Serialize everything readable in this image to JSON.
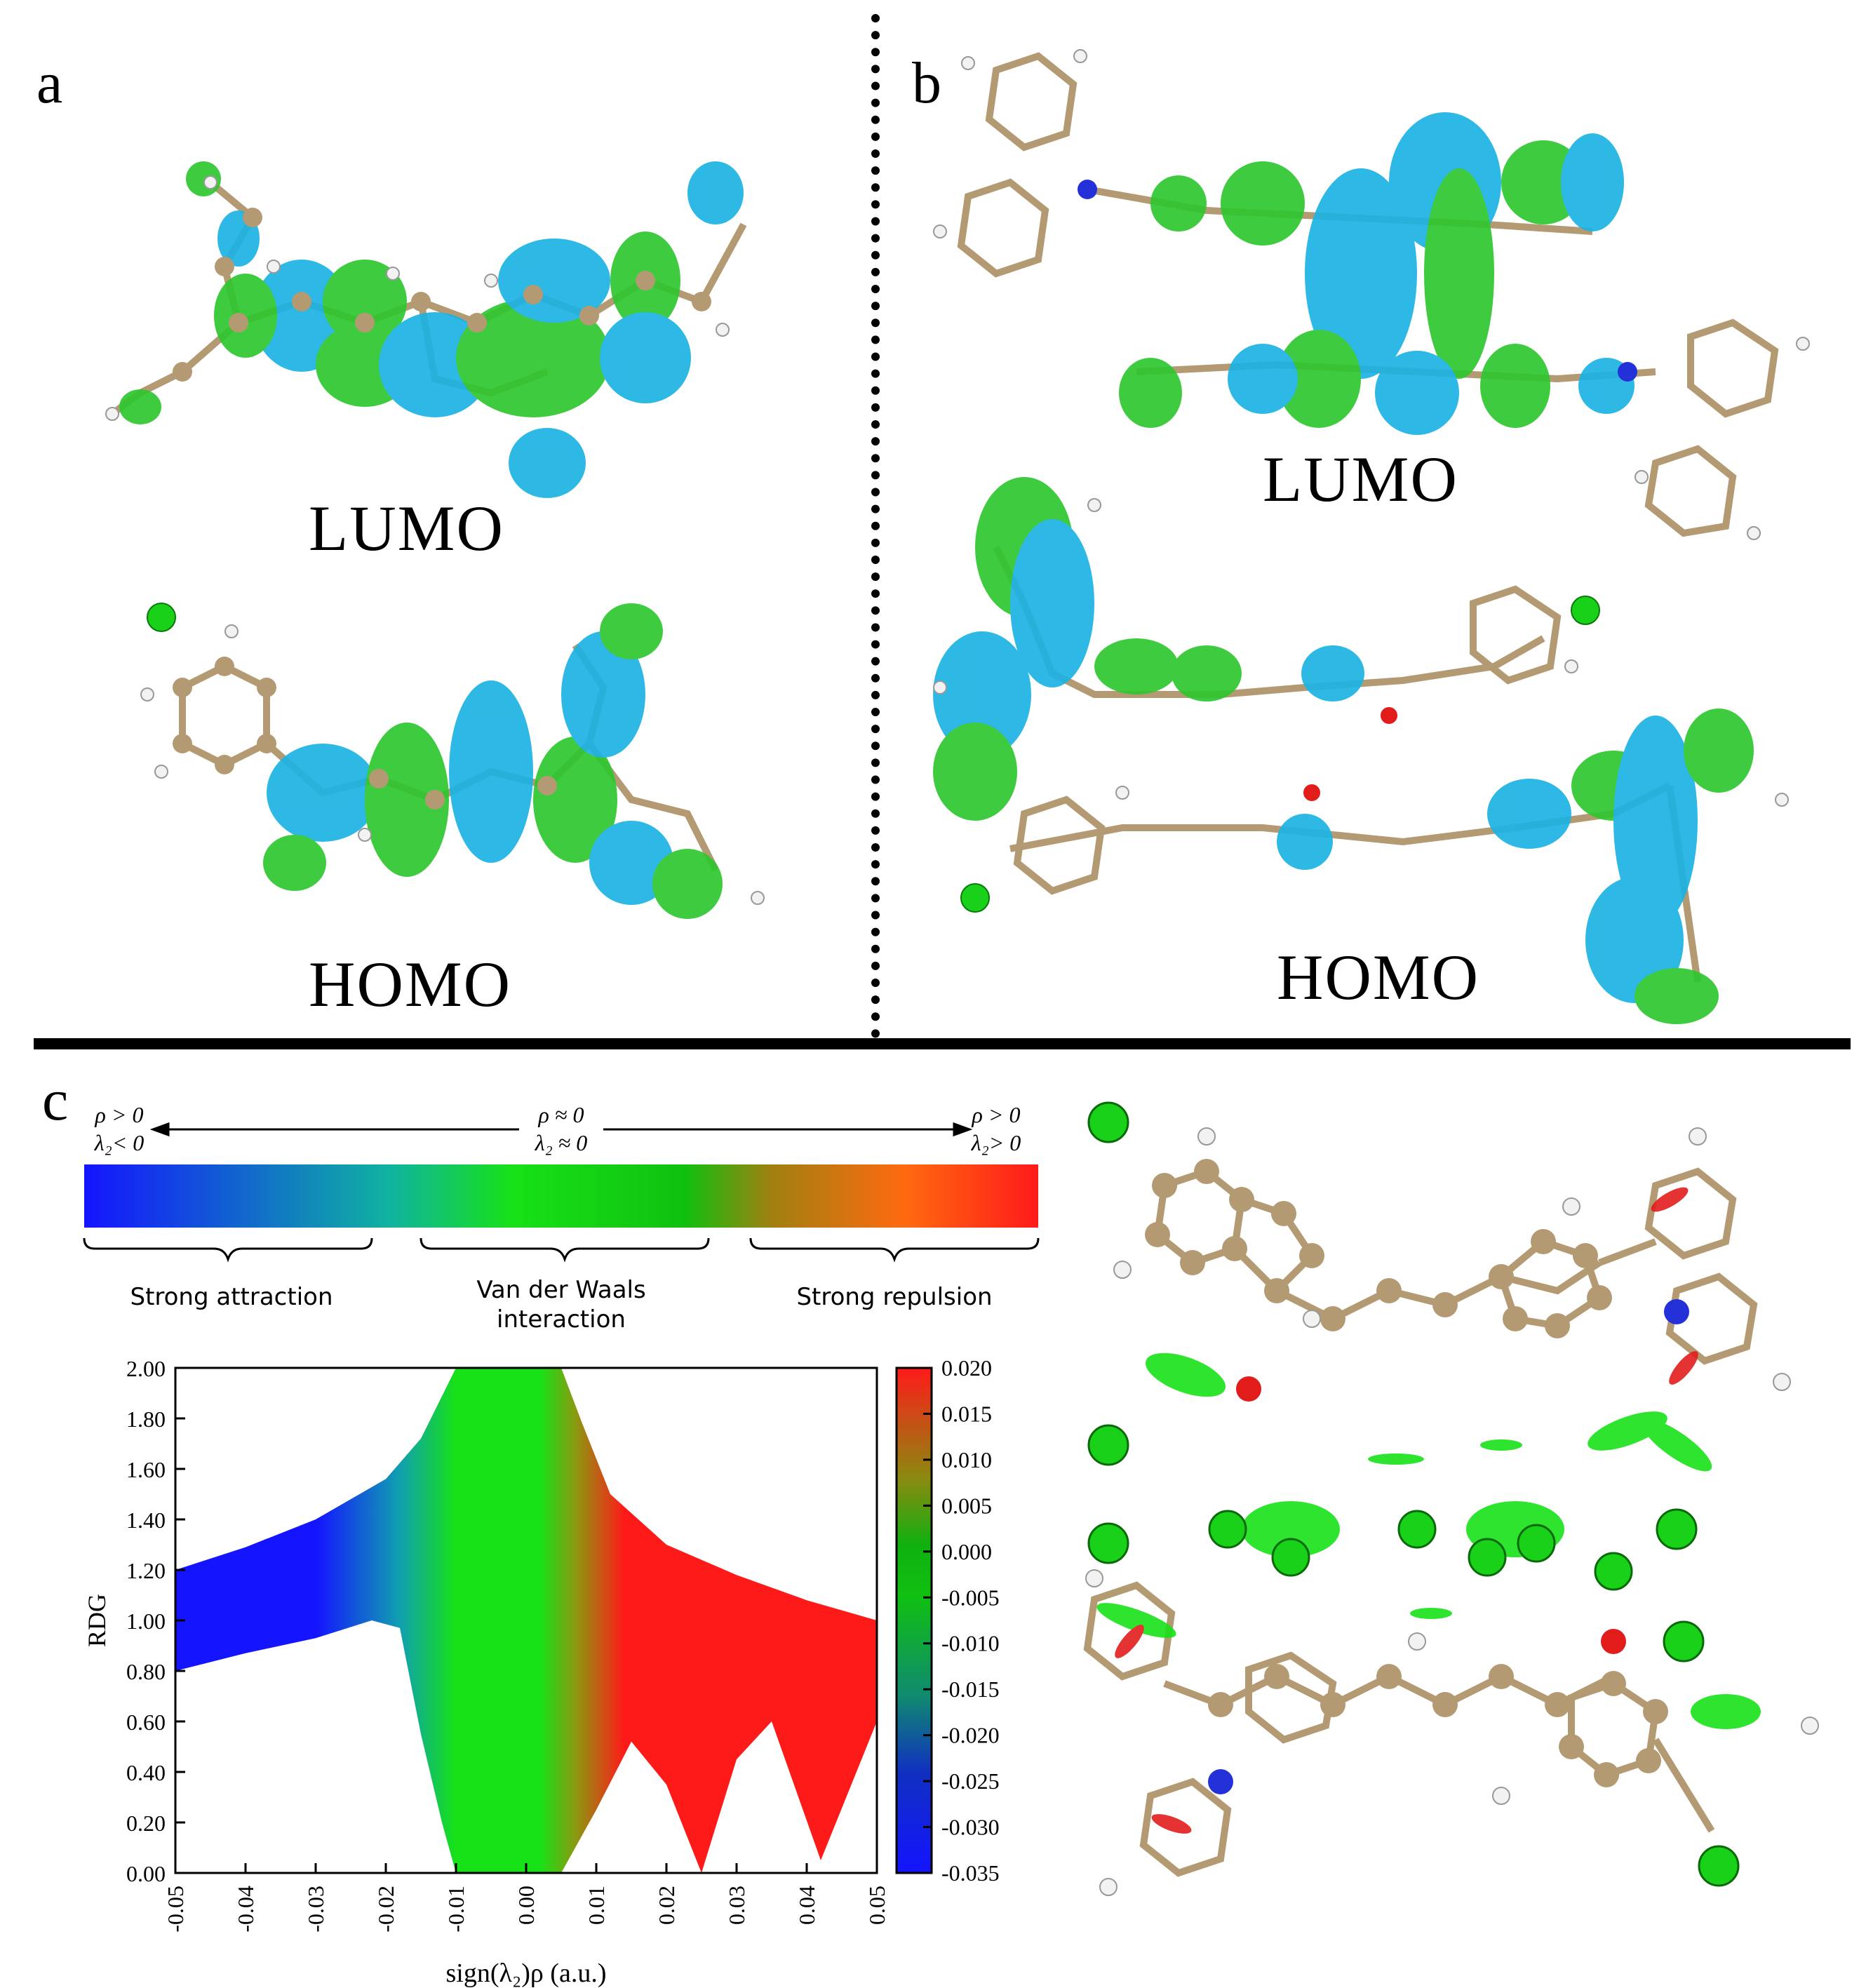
{
  "panels": {
    "a": {
      "label": "a",
      "lumo": "LUMO",
      "homo": "HOMO"
    },
    "b": {
      "label": "b",
      "lumo": "LUMO",
      "homo": "HOMO"
    },
    "c": {
      "label": "c"
    }
  },
  "colors": {
    "carbon": "#b49a72",
    "hydrogen": "#f2f2f2",
    "chlorine": "#19d119",
    "nitrogen": "#2430d8",
    "oxygen": "#e21b1b",
    "orbital_pos": "#1cb3e3",
    "orbital_neg": "#2fc72f",
    "attraction": "#1414ff",
    "vdw": "#17e117",
    "repulsion": "#ff1a1a"
  },
  "scale_bar": {
    "left_top": "ρ > 0",
    "left_bottom": "λ₂< 0",
    "mid_top": "ρ ≈ 0",
    "mid_bottom": "λ₂ ≈ 0",
    "right_top": "ρ > 0",
    "right_bottom": "λ₂> 0",
    "strong_attraction": "Strong attraction",
    "vdw_line1": "Van der Waals",
    "vdw_line2": "interaction",
    "strong_repulsion": "Strong repulsion"
  },
  "chart_data": {
    "type": "scatter",
    "title": "",
    "xlabel": "sign(λ₂)ρ (a.u.)",
    "ylabel": "RDG",
    "xlim": [
      -0.05,
      0.05
    ],
    "ylim": [
      0.0,
      2.0
    ],
    "x_ticks": [
      "-0.05",
      "-0.04",
      "-0.03",
      "-0.02",
      "-0.01",
      "0.00",
      "0.01",
      "0.02",
      "0.03",
      "0.04",
      "0.05"
    ],
    "y_ticks": [
      "0.00",
      "0.20",
      "0.40",
      "0.60",
      "0.80",
      "1.00",
      "1.20",
      "1.40",
      "1.60",
      "1.80",
      "2.00"
    ],
    "colorbar": {
      "range": [
        -0.035,
        0.02
      ],
      "ticks": [
        "0.020",
        "0.015",
        "0.010",
        "0.005",
        "0.000",
        "-0.005",
        "-0.010",
        "-0.015",
        "-0.020",
        "-0.025",
        "-0.030",
        "-0.035"
      ]
    },
    "envelope_upper": [
      [
        -0.05,
        1.2
      ],
      [
        -0.04,
        1.29
      ],
      [
        -0.03,
        1.4
      ],
      [
        -0.02,
        1.56
      ],
      [
        -0.015,
        1.72
      ],
      [
        -0.01,
        2.0
      ],
      [
        0.005,
        2.0
      ],
      [
        0.008,
        1.78
      ],
      [
        0.012,
        1.5
      ],
      [
        0.02,
        1.3
      ],
      [
        0.03,
        1.18
      ],
      [
        0.04,
        1.08
      ],
      [
        0.05,
        1.0
      ]
    ],
    "envelope_lower": [
      [
        -0.05,
        0.8
      ],
      [
        -0.04,
        0.87
      ],
      [
        -0.03,
        0.93
      ],
      [
        -0.022,
        1.0
      ],
      [
        -0.018,
        0.97
      ],
      [
        -0.015,
        0.55
      ],
      [
        -0.012,
        0.2
      ],
      [
        -0.01,
        0.0
      ],
      [
        0.005,
        0.0
      ],
      [
        0.01,
        0.25
      ],
      [
        0.015,
        0.52
      ],
      [
        0.02,
        0.35
      ],
      [
        0.025,
        0.0
      ],
      [
        0.03,
        0.45
      ],
      [
        0.035,
        0.6
      ],
      [
        0.042,
        0.05
      ],
      [
        0.05,
        0.6
      ]
    ]
  }
}
